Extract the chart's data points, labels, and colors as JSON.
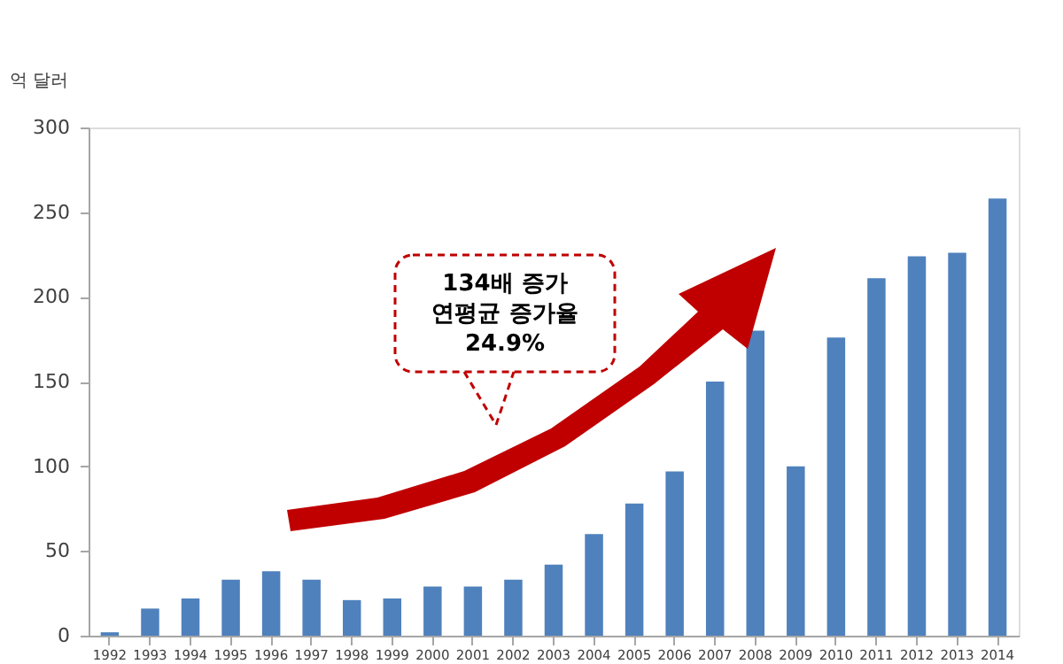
{
  "chart_data": {
    "type": "bar",
    "ylabel": "억 달러",
    "categories": [
      "1992",
      "1993",
      "1994",
      "1995",
      "1996",
      "1997",
      "1998",
      "1999",
      "2000",
      "2001",
      "2002",
      "2003",
      "2004",
      "2005",
      "2006",
      "2007",
      "2008",
      "2009",
      "2010",
      "2011",
      "2012",
      "2013",
      "2014"
    ],
    "values": [
      2,
      16,
      22,
      33,
      38,
      33,
      21,
      22,
      29,
      29,
      33,
      42,
      60,
      78,
      97,
      150,
      180,
      100,
      176,
      211,
      224,
      226,
      258
    ],
    "color": "#4f81bd",
    "ylim": [
      0,
      300
    ],
    "yticks": [
      0,
      50,
      100,
      150,
      200,
      250,
      300
    ],
    "grid": false,
    "annotations": [
      "134배 증가\n연평균 증가율\n24.9%"
    ]
  }
}
